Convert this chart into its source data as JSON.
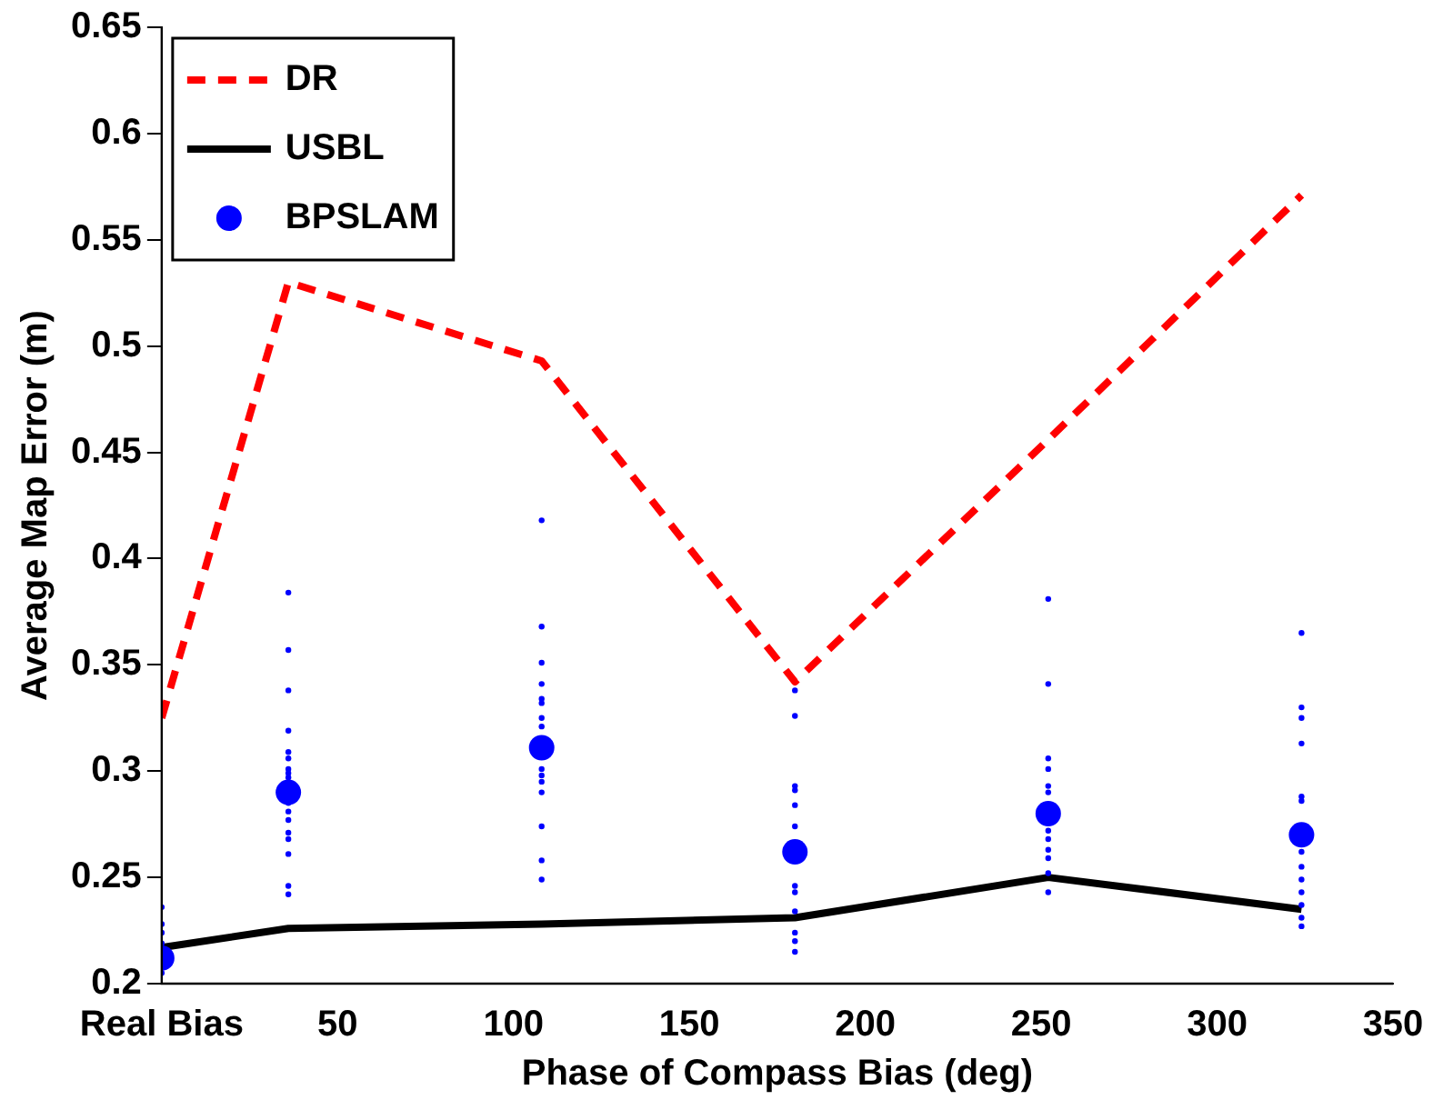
{
  "chart_data": {
    "type": "line",
    "xlabel": "Phase of Compass Bias (deg)",
    "ylabel": "Average Map Error (m)",
    "xlim": [
      0,
      350
    ],
    "xticks": [
      {
        "value": 0,
        "label": "Real Bias"
      },
      50,
      100,
      150,
      200,
      250,
      300,
      350
    ],
    "ylim": [
      0.2,
      0.65
    ],
    "yticks": [
      0.2,
      0.25,
      0.3,
      0.35,
      0.4,
      0.45,
      0.5,
      0.55,
      0.6,
      0.65
    ],
    "grid": false,
    "legend": "top left",
    "series": [
      {
        "name": "DR",
        "line_style": "dashed",
        "color": "#ff0000",
        "x": [
          0,
          36,
          108,
          180,
          252,
          324
        ],
        "values": [
          0.325,
          0.53,
          0.493,
          0.342,
          0.456,
          0.571
        ]
      },
      {
        "name": "USBL",
        "line_style": "solid",
        "color": "#000000",
        "x": [
          0,
          36,
          108,
          180,
          252,
          324
        ],
        "values": [
          0.217,
          0.226,
          0.228,
          0.231,
          0.25,
          0.235
        ]
      },
      {
        "name": "BPSLAM",
        "type": "scatter",
        "marker": "circle",
        "color": "#0000ff",
        "x": [
          0,
          36,
          108,
          180,
          252,
          324
        ],
        "values": [
          0.212,
          0.29,
          0.311,
          0.262,
          0.28,
          0.27
        ]
      },
      {
        "type": "scatter",
        "marker": "circle",
        "color": "#0000ff",
        "x": [
          0,
          0,
          0,
          0,
          0,
          36,
          36,
          36,
          36,
          36,
          36,
          36,
          36,
          36,
          36,
          36,
          36,
          36,
          36,
          36,
          36,
          36,
          108,
          108,
          108,
          108,
          108,
          108,
          108,
          108,
          108,
          108,
          108,
          108,
          108,
          108,
          108,
          180,
          180,
          180,
          180,
          180,
          180,
          180,
          180,
          180,
          180,
          180,
          180,
          252,
          252,
          252,
          252,
          252,
          252,
          252,
          252,
          252,
          252,
          252,
          252,
          324,
          324,
          324,
          324,
          324,
          324,
          324,
          324,
          324,
          324,
          324,
          324,
          324
        ],
        "values": [
          0.236,
          0.228,
          0.224,
          0.219,
          0.205,
          0.384,
          0.357,
          0.338,
          0.319,
          0.309,
          0.306,
          0.301,
          0.299,
          0.297,
          0.285,
          0.281,
          0.277,
          0.271,
          0.268,
          0.261,
          0.246,
          0.242,
          0.418,
          0.368,
          0.351,
          0.341,
          0.334,
          0.332,
          0.325,
          0.321,
          0.301,
          0.298,
          0.295,
          0.29,
          0.274,
          0.258,
          0.249,
          0.338,
          0.326,
          0.293,
          0.291,
          0.284,
          0.274,
          0.246,
          0.243,
          0.234,
          0.224,
          0.22,
          0.215,
          0.381,
          0.341,
          0.306,
          0.301,
          0.293,
          0.29,
          0.272,
          0.268,
          0.263,
          0.259,
          0.252,
          0.243,
          0.365,
          0.33,
          0.325,
          0.313,
          0.288,
          0.286,
          0.262,
          0.255,
          0.249,
          0.243,
          0.237,
          0.231,
          0.227
        ]
      }
    ]
  }
}
